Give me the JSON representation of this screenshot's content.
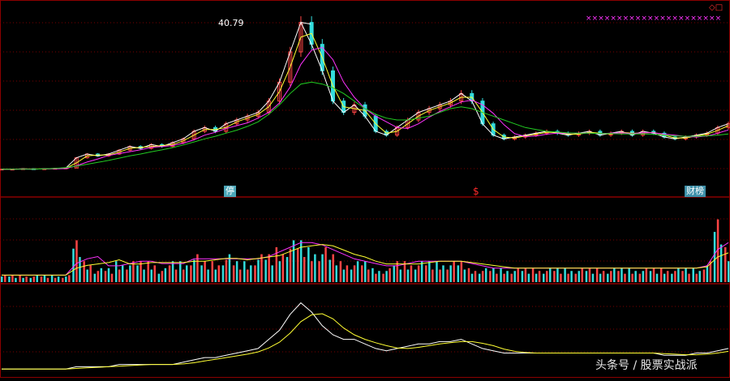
{
  "price_panel": {
    "peak_label": "40.79",
    "markers": [
      "停",
      "$",
      "财榜"
    ],
    "corner_icon": "diamond-window-icon"
  },
  "watermark": "头条号 / 股票实战派",
  "colors": {
    "background": "#000000",
    "grid": "#7a0000",
    "border": "#8b0000",
    "ma_white": "#ffffff",
    "ma_yellow": "#ffff33",
    "ma_magenta": "#ff33ff",
    "ma_green": "#22cc22",
    "candle_up": "#ff4444",
    "candle_down": "#33dddd",
    "signal_marks": "#ff33ff"
  },
  "chart_data": {
    "type": "line",
    "series_price": [
      2.0,
      2.0,
      2.1,
      2.0,
      2.1,
      2.2,
      2.3,
      5.0,
      6.0,
      5.5,
      6.0,
      7.0,
      8.0,
      7.5,
      8.5,
      8.0,
      9.0,
      10.0,
      12.0,
      13.0,
      12.0,
      14.0,
      15.0,
      16.0,
      17.0,
      20.0,
      25.0,
      33.0,
      40.79,
      35.0,
      28.0,
      20.0,
      17.0,
      19.0,
      16.0,
      12.0,
      11.0,
      13.0,
      15.0,
      17.0,
      18.0,
      19.0,
      20.0,
      22.0,
      20.0,
      14.0,
      11.0,
      10.0,
      10.5,
      11.0,
      11.5,
      12.0,
      11.5,
      11.0,
      11.5,
      12.0,
      11.0,
      11.5,
      12.0,
      11.0,
      12.0,
      11.5,
      10.5,
      10.0,
      10.5,
      11.0,
      11.5,
      13.0,
      14.0
    ],
    "series_ma_long": [
      2.0,
      2.0,
      2.0,
      2.0,
      2.1,
      2.2,
      2.4,
      2.8,
      3.3,
      3.8,
      4.3,
      4.9,
      5.5,
      6.0,
      6.6,
      7.1,
      7.7,
      8.4,
      9.2,
      10.0,
      10.7,
      11.5,
      12.3,
      13.3,
      14.5,
      16.5,
      19.0,
      22.0,
      24.5,
      25.0,
      24.5,
      23.5,
      22.0,
      20.0,
      18.0,
      16.5,
      15.5,
      15.0,
      15.0,
      15.5,
      16.0,
      17.0,
      18.0,
      18.5,
      18.0,
      17.0,
      16.0,
      15.0,
      14.0,
      13.0,
      12.5,
      12.0,
      11.8,
      11.6,
      11.5,
      11.5,
      11.4,
      11.4,
      11.3,
      11.3,
      11.3,
      11.2,
      11.0,
      10.8,
      10.7,
      10.7,
      10.8,
      11.0,
      11.3
    ],
    "series_volume": [
      1,
      1,
      1,
      1,
      1,
      1,
      1,
      6,
      3,
      2,
      2,
      3,
      3,
      3,
      3,
      2,
      3,
      3,
      4,
      3,
      3,
      4,
      3,
      3,
      4,
      4,
      5,
      6,
      6,
      5,
      5,
      4,
      3,
      3,
      3,
      2,
      2,
      3,
      3,
      3,
      3,
      3,
      3,
      3,
      2,
      2,
      2,
      2,
      2,
      2,
      2,
      2,
      2,
      2,
      2,
      2,
      2,
      2,
      2,
      2,
      2,
      2,
      2,
      2,
      2,
      2,
      3,
      9,
      5
    ],
    "series_indicator": [
      1,
      1,
      1,
      1,
      1,
      1,
      1,
      2,
      2,
      2,
      2,
      3,
      3,
      3,
      3,
      3,
      3,
      4,
      5,
      6,
      6,
      7,
      8,
      9,
      10,
      14,
      18,
      25,
      30,
      26,
      20,
      16,
      14,
      14,
      12,
      10,
      9,
      10,
      11,
      12,
      12,
      13,
      13,
      14,
      12,
      10,
      9,
      8,
      8,
      8,
      8,
      8,
      8,
      8,
      8,
      8,
      8,
      8,
      8,
      8,
      8,
      8,
      7,
      7,
      7,
      8,
      8,
      9,
      10
    ]
  }
}
